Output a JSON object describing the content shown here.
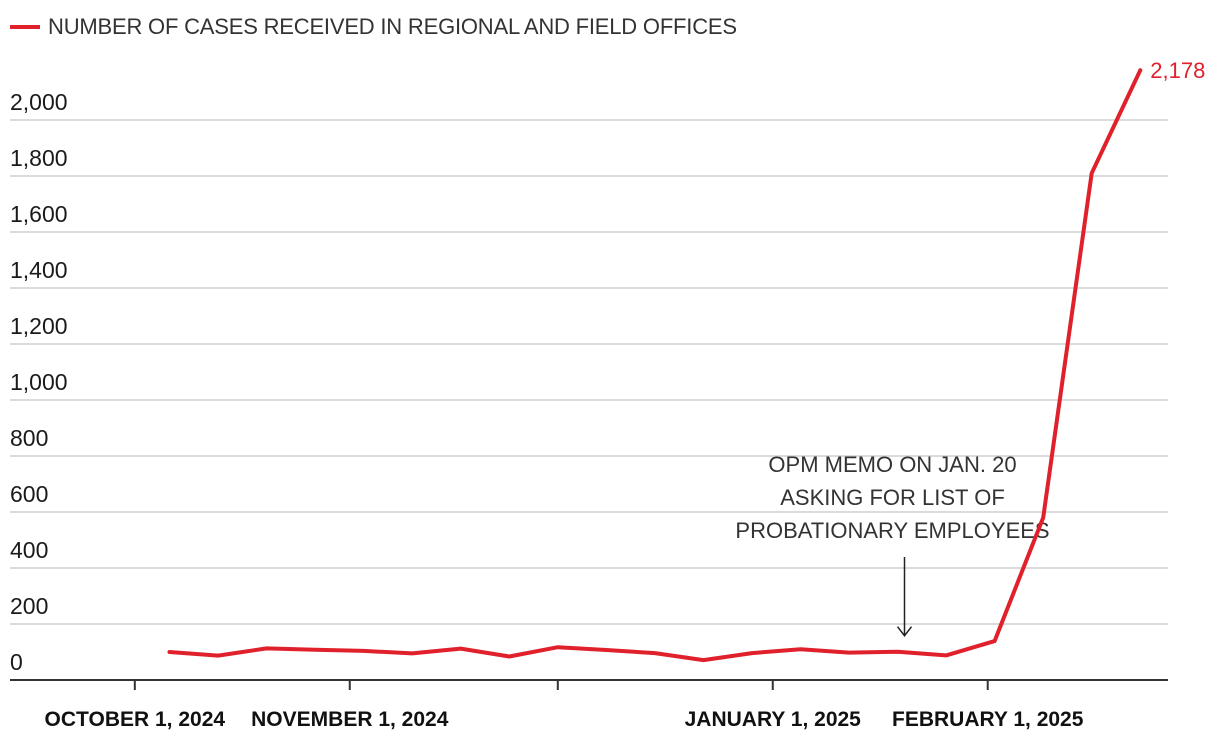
{
  "legend": {
    "label": "NUMBER OF CASES RECEIVED IN REGIONAL AND FIELD OFFICES"
  },
  "colors": {
    "series": "#e0202b",
    "grid": "#cfcfcf",
    "axis": "#333333"
  },
  "chart_data": {
    "type": "line",
    "title": "",
    "xlabel": "",
    "ylabel": "",
    "ylim": [
      0,
      2200
    ],
    "grid": true,
    "legend_position": "top-left",
    "yticks": [
      0,
      200,
      400,
      600,
      800,
      1000,
      1200,
      1400,
      1600,
      1800,
      2000
    ],
    "ytick_labels": [
      "0",
      "200",
      "400",
      "600",
      "800",
      "1,000",
      "1,200",
      "1,400",
      "1,600",
      "1,800",
      "2,000"
    ],
    "xlim": [
      "2024-09-13",
      "2025-02-27"
    ],
    "xticks": [
      {
        "date": "2024-10-01",
        "label": "OCTOBER 1, 2024"
      },
      {
        "date": "2024-11-01",
        "label": "NOVEMBER 1, 2024"
      },
      {
        "date": "2024-12-01",
        "label": ""
      },
      {
        "date": "2025-01-01",
        "label": "JANUARY 1, 2025"
      },
      {
        "date": "2025-02-01",
        "label": "FEBRUARY 1, 2025"
      }
    ],
    "series": [
      {
        "name": "NUMBER OF CASES RECEIVED IN REGIONAL AND FIELD OFFICES",
        "x": [
          "2024-10-06",
          "2024-10-13",
          "2024-10-20",
          "2024-10-27",
          "2024-11-03",
          "2024-11-10",
          "2024-11-17",
          "2024-11-24",
          "2024-12-01",
          "2024-12-08",
          "2024-12-15",
          "2024-12-22",
          "2024-12-29",
          "2025-01-05",
          "2025-01-12",
          "2025-01-19",
          "2025-01-26",
          "2025-02-02",
          "2025-02-09",
          "2025-02-16",
          "2025-02-23"
        ],
        "values": [
          100,
          87,
          113,
          108,
          104,
          95,
          112,
          84,
          117,
          107,
          96,
          71,
          96,
          110,
          98,
          101,
          88,
          139,
          580,
          1810,
          2178
        ]
      }
    ],
    "end_label": "2,178",
    "annotation": {
      "lines": [
        "OPM MEMO ON JAN. 20",
        "ASKING FOR LIST OF",
        "PROBATIONARY EMPLOYEES"
      ],
      "date": "2025-01-20",
      "value": 101
    }
  }
}
